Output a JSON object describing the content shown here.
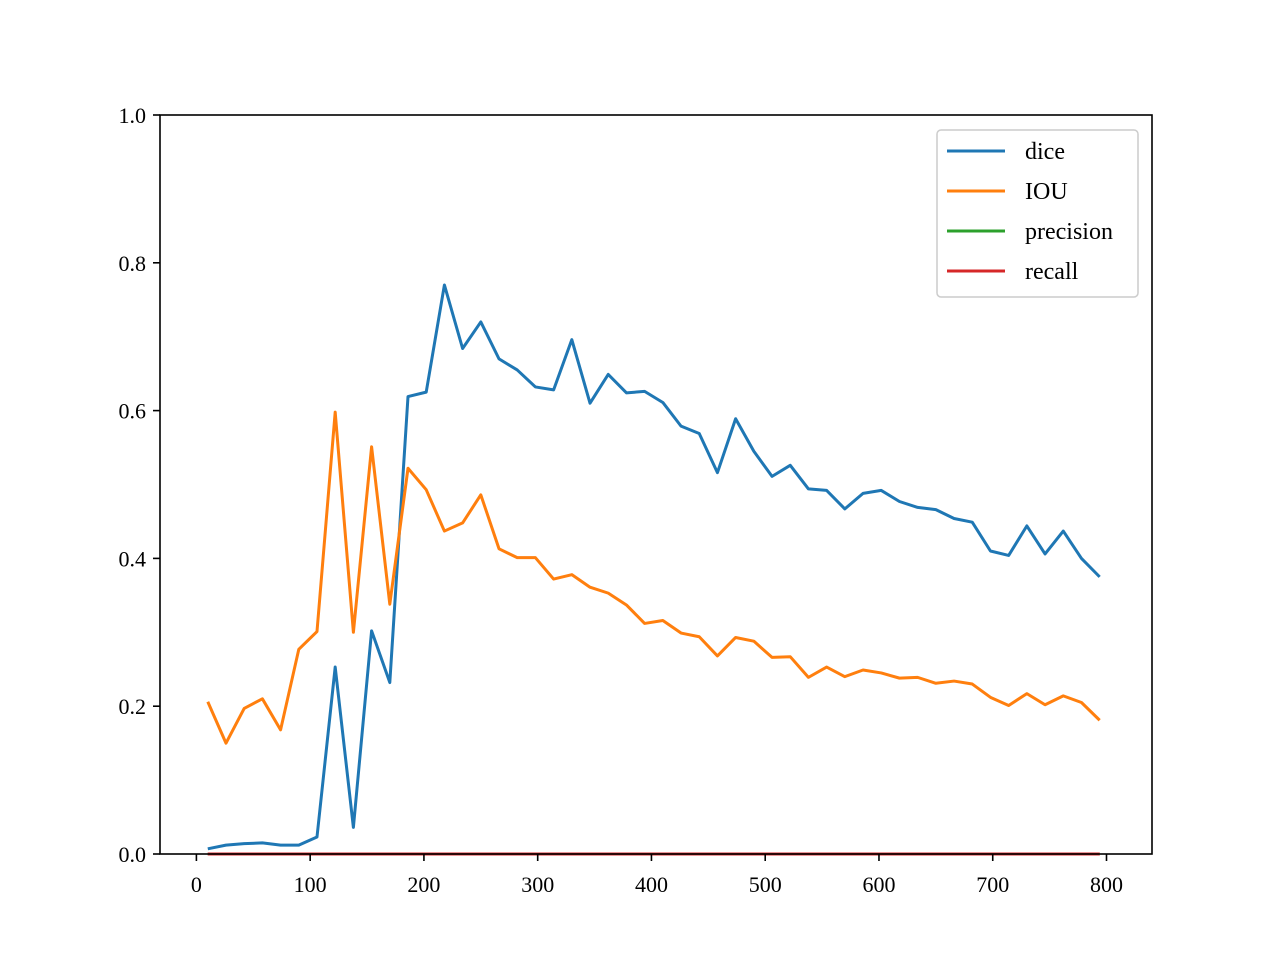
{
  "chart_data": {
    "type": "line",
    "title": "",
    "xlabel": "",
    "ylabel": "",
    "xlim": [
      -32,
      840
    ],
    "ylim": [
      0,
      1.0
    ],
    "xticks": [
      0,
      100,
      200,
      300,
      400,
      500,
      600,
      700,
      800
    ],
    "yticks": [
      0.0,
      0.2,
      0.4,
      0.6,
      0.8,
      1.0
    ],
    "xtick_labels": [
      "0",
      "100",
      "200",
      "300",
      "400",
      "500",
      "600",
      "700",
      "800"
    ],
    "ytick_labels": [
      "0.0",
      "0.2",
      "0.4",
      "0.6",
      "0.8",
      "1.0"
    ],
    "grid": false,
    "legend_position": "top-right",
    "x": [
      10,
      26,
      42,
      58,
      74,
      90,
      106,
      122,
      138,
      154,
      170,
      186,
      202,
      218,
      234,
      250,
      266,
      282,
      298,
      314,
      330,
      346,
      362,
      378,
      394,
      410,
      426,
      442,
      458,
      474,
      490,
      506,
      522,
      538,
      554,
      570,
      586,
      602,
      618,
      634,
      650,
      666,
      682,
      698,
      714,
      730,
      746,
      762,
      778,
      794
    ],
    "series": [
      {
        "name": "dice",
        "color": "#1f77b4",
        "values": [
          0.007,
          0.012,
          0.014,
          0.015,
          0.012,
          0.012,
          0.023,
          0.253,
          0.036,
          0.302,
          0.232,
          0.619,
          0.625,
          0.77,
          0.684,
          0.72,
          0.67,
          0.655,
          0.632,
          0.628,
          0.696,
          0.61,
          0.649,
          0.624,
          0.626,
          0.611,
          0.579,
          0.569,
          0.516,
          0.589,
          0.545,
          0.511,
          0.526,
          0.494,
          0.492,
          0.467,
          0.488,
          0.492,
          0.477,
          0.469,
          0.466,
          0.454,
          0.449,
          0.41,
          0.404,
          0.444,
          0.406,
          0.437,
          0.4,
          0.375
        ]
      },
      {
        "name": "IOU",
        "color": "#ff7f0e",
        "values": [
          0.206,
          0.15,
          0.197,
          0.21,
          0.168,
          0.277,
          0.301,
          0.598,
          0.3,
          0.551,
          0.338,
          0.522,
          0.493,
          0.437,
          0.448,
          0.486,
          0.413,
          0.401,
          0.401,
          0.372,
          0.378,
          0.361,
          0.353,
          0.337,
          0.312,
          0.316,
          0.299,
          0.294,
          0.268,
          0.293,
          0.288,
          0.266,
          0.267,
          0.239,
          0.253,
          0.24,
          0.249,
          0.245,
          0.238,
          0.239,
          0.231,
          0.234,
          0.23,
          0.212,
          0.201,
          0.217,
          0.202,
          0.214,
          0.205,
          0.181
        ]
      },
      {
        "name": "precision",
        "color": "#2ca02c",
        "values": [
          0,
          0,
          0,
          0,
          0,
          0,
          0,
          0,
          0,
          0,
          0,
          0,
          0,
          0,
          0,
          0,
          0,
          0,
          0,
          0,
          0,
          0,
          0,
          0,
          0,
          0,
          0,
          0,
          0,
          0,
          0,
          0,
          0,
          0,
          0,
          0,
          0,
          0,
          0,
          0,
          0,
          0,
          0,
          0,
          0,
          0,
          0,
          0,
          0,
          0
        ]
      },
      {
        "name": "recall",
        "color": "#d62728",
        "values": [
          0,
          0,
          0,
          0,
          0,
          0,
          0,
          0,
          0,
          0,
          0,
          0,
          0,
          0,
          0,
          0,
          0,
          0,
          0,
          0,
          0,
          0,
          0,
          0,
          0,
          0,
          0,
          0,
          0,
          0,
          0,
          0,
          0,
          0,
          0,
          0,
          0,
          0,
          0,
          0,
          0,
          0,
          0,
          0,
          0,
          0,
          0,
          0,
          0,
          0
        ]
      }
    ]
  }
}
